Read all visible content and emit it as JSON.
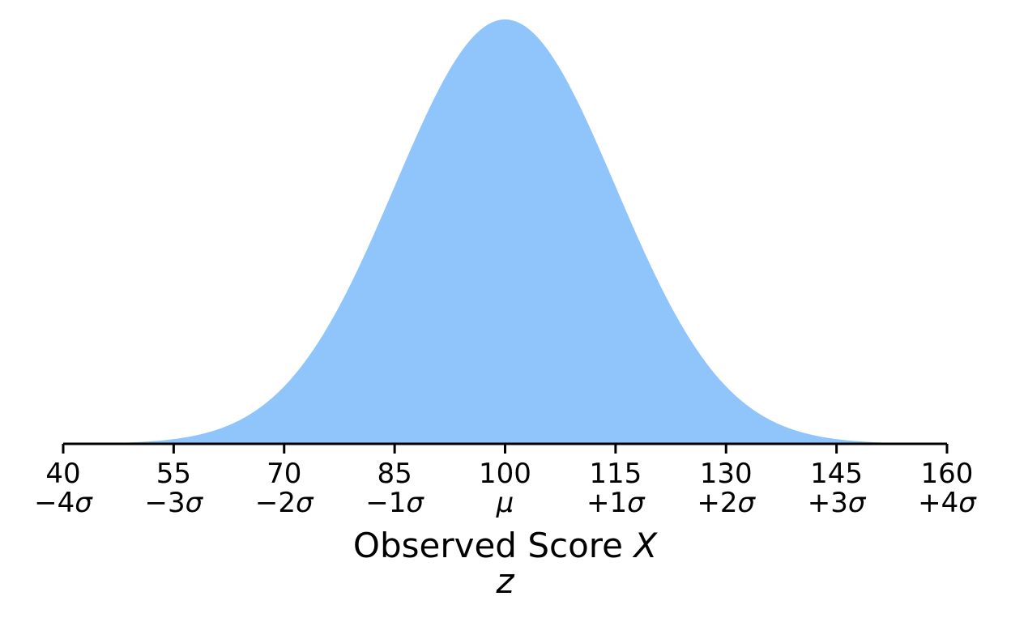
{
  "chart_data": {
    "type": "area",
    "distribution": "normal",
    "mean": 100,
    "sd": 15,
    "xlim": [
      40,
      160
    ],
    "x_ticks": [
      40,
      55,
      70,
      85,
      100,
      115,
      130,
      145,
      160
    ],
    "x_tick_labels": [
      "40",
      "55",
      "70",
      "85",
      "100",
      "115",
      "130",
      "145",
      "160"
    ],
    "z_tick_labels": [
      "−4σ",
      "−3σ",
      "−2σ",
      "−1σ",
      "μ",
      "+1σ",
      "+2σ",
      "+3σ",
      "+4σ"
    ],
    "xlabel": {
      "prefix": "Observed Score ",
      "symbol": "X"
    },
    "xlabel2": "z",
    "fill_color": "#90c5fb",
    "axis_color": "#000000",
    "grid": false,
    "yaxis_visible": false
  }
}
